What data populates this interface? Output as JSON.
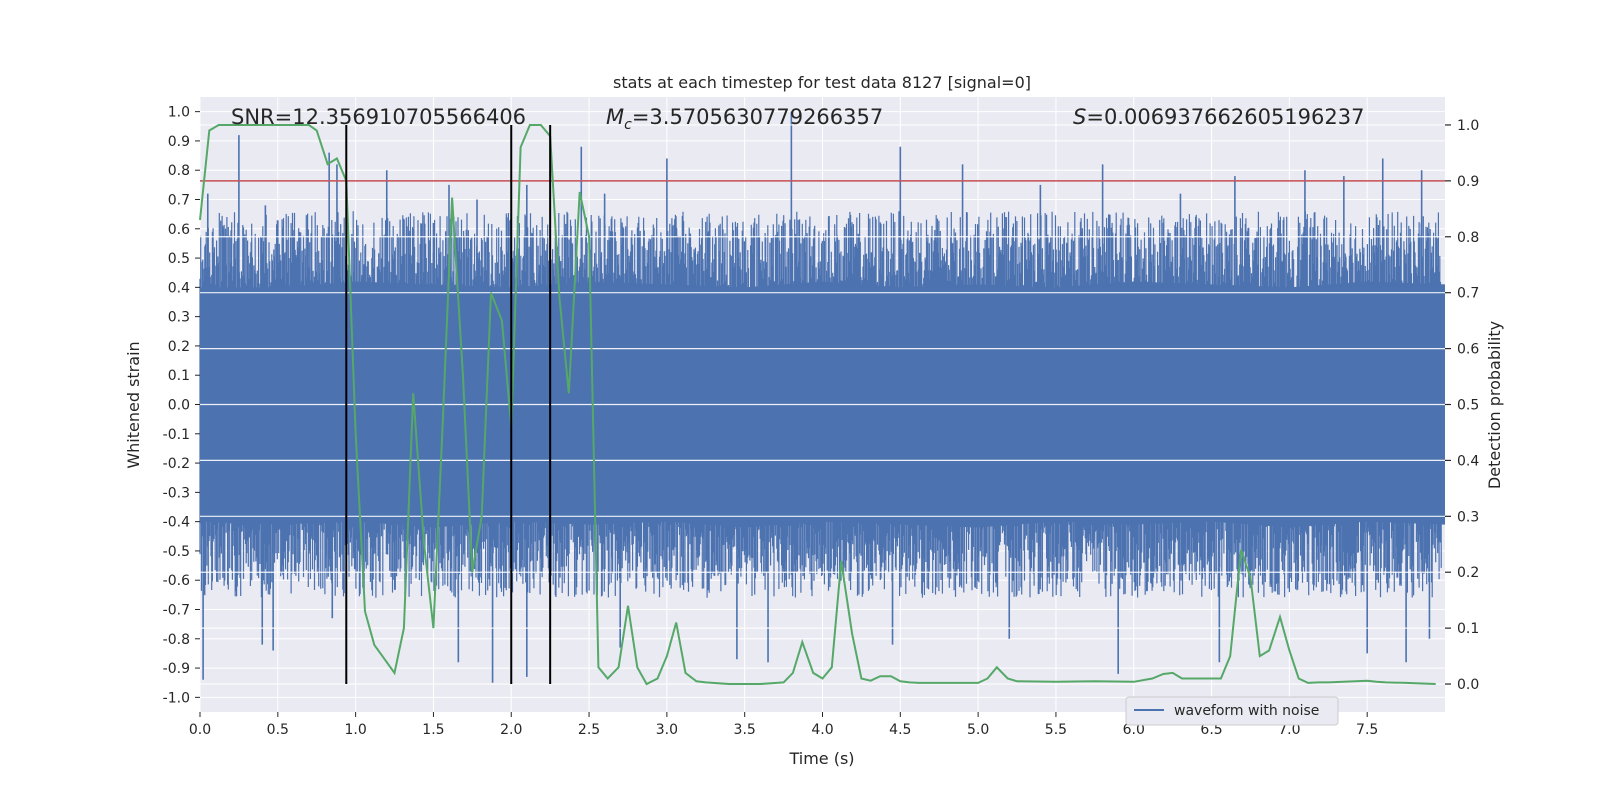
{
  "chart_data": {
    "type": "line",
    "title": "stats at each timestep for test data 8127 [signal=0]",
    "xlabel": "Time (s)",
    "ylabel": "Whitened strain",
    "y2label": "Detection probability",
    "xlim": [
      0.0,
      8.0
    ],
    "ylim": [
      -1.05,
      1.05
    ],
    "y2lim": [
      -0.05,
      1.05
    ],
    "x_ticks": [
      "0.0",
      "0.5",
      "1.0",
      "1.5",
      "2.0",
      "2.5",
      "3.0",
      "3.5",
      "4.0",
      "4.5",
      "5.0",
      "5.5",
      "6.0",
      "6.5",
      "7.0",
      "7.5"
    ],
    "y_ticks": [
      "1.0",
      "0.9",
      "0.8",
      "0.7",
      "0.6",
      "0.5",
      "0.4",
      "0.3",
      "0.2",
      "0.1",
      "0.0",
      "-0.1",
      "-0.2",
      "-0.3",
      "-0.4",
      "-0.5",
      "-0.6",
      "-0.7",
      "-0.8",
      "-0.9",
      "-1.0"
    ],
    "y2_ticks": [
      "1.0",
      "0.9",
      "0.8",
      "0.7",
      "0.6",
      "0.5",
      "0.4",
      "0.3",
      "0.2",
      "0.1",
      "0.0"
    ],
    "annotations": {
      "snr": "SNR=12.356910705566406",
      "mc_symbol": "M",
      "mc_sub": "c",
      "mc_value": "=3.5705630779266357",
      "s_symbol": "S",
      "s_value": "=0.006937662605196237"
    },
    "threshold": {
      "y2": 0.9,
      "color": "#c44e52"
    },
    "vertical_lines": [
      0.94,
      2.0,
      2.25
    ],
    "legend": {
      "label": "waveform with noise",
      "placement": "lower-right"
    },
    "colors": {
      "waveform": "#4c72b0",
      "probability": "#55a868",
      "vlines": "#000000",
      "background": "#eaeaf2",
      "grid": "#ffffff"
    },
    "series": [
      {
        "name": "waveform with noise",
        "band_upper": [
          0.4,
          0.4,
          0.42,
          0.41,
          0.4,
          0.42,
          0.41,
          0.4,
          0.42,
          0.4,
          0.41,
          0.4,
          0.42,
          0.41,
          0.4,
          0.42,
          0.41
        ],
        "band_lower": [
          -0.4,
          -0.41,
          -0.4,
          -0.42,
          -0.4,
          -0.41,
          -0.4,
          -0.42,
          -0.4,
          -0.41,
          -0.42,
          -0.4,
          -0.41,
          -0.4,
          -0.42,
          -0.4,
          -0.41
        ],
        "band_x": [
          0.0,
          0.5,
          1.0,
          1.5,
          2.0,
          2.5,
          3.0,
          3.5,
          4.0,
          4.5,
          5.0,
          5.5,
          6.0,
          6.5,
          7.0,
          7.5,
          8.0
        ],
        "peaks": [
          [
            0.05,
            0.72
          ],
          [
            0.25,
            0.92
          ],
          [
            0.42,
            0.68
          ],
          [
            0.83,
            0.86
          ],
          [
            0.88,
            0.82
          ],
          [
            1.2,
            0.8
          ],
          [
            1.5,
            0.62
          ],
          [
            1.6,
            0.75
          ],
          [
            1.78,
            0.7
          ],
          [
            2.1,
            0.75
          ],
          [
            2.45,
            0.88
          ],
          [
            2.6,
            0.72
          ],
          [
            3.0,
            0.84
          ],
          [
            3.8,
            1.0
          ],
          [
            4.5,
            0.88
          ],
          [
            4.9,
            0.82
          ],
          [
            5.4,
            0.75
          ],
          [
            5.8,
            0.82
          ],
          [
            6.3,
            0.72
          ],
          [
            6.65,
            0.78
          ],
          [
            7.1,
            0.8
          ],
          [
            7.35,
            0.78
          ],
          [
            7.6,
            0.84
          ],
          [
            7.85,
            0.8
          ]
        ],
        "troughs": [
          [
            0.02,
            -0.94
          ],
          [
            0.4,
            -0.82
          ],
          [
            0.47,
            -0.84
          ],
          [
            0.85,
            -0.73
          ],
          [
            1.05,
            -0.58
          ],
          [
            1.66,
            -0.88
          ],
          [
            1.88,
            -0.95
          ],
          [
            2.1,
            -0.93
          ],
          [
            2.7,
            -0.83
          ],
          [
            3.45,
            -0.87
          ],
          [
            3.65,
            -0.88
          ],
          [
            4.45,
            -0.82
          ],
          [
            5.2,
            -0.8
          ],
          [
            5.9,
            -0.92
          ],
          [
            6.55,
            -0.88
          ],
          [
            7.5,
            -0.85
          ],
          [
            7.75,
            -0.88
          ],
          [
            7.9,
            -0.8
          ]
        ]
      },
      {
        "name": "",
        "axis": "y2",
        "x": [
          0.0,
          0.06,
          0.12,
          0.25,
          0.5,
          0.6,
          0.7,
          0.75,
          0.82,
          0.88,
          0.94,
          1.0,
          1.06,
          1.12,
          1.25,
          1.31,
          1.37,
          1.44,
          1.5,
          1.56,
          1.62,
          1.69,
          1.75,
          1.81,
          1.87,
          1.94,
          2.0,
          2.06,
          2.12,
          2.19,
          2.25,
          2.31,
          2.37,
          2.44,
          2.5,
          2.56,
          2.62,
          2.69,
          2.75,
          2.81,
          2.87,
          2.94,
          3.0,
          3.06,
          3.12,
          3.19,
          3.25,
          3.4,
          3.6,
          3.75,
          3.81,
          3.87,
          3.94,
          4.0,
          4.06,
          4.12,
          4.19,
          4.25,
          4.31,
          4.37,
          4.44,
          4.5,
          4.56,
          4.62,
          4.75,
          5.0,
          5.06,
          5.12,
          5.19,
          5.25,
          5.5,
          5.75,
          6.0,
          6.12,
          6.19,
          6.25,
          6.31,
          6.37,
          6.44,
          6.56,
          6.62,
          6.69,
          6.75,
          6.81,
          6.87,
          6.94,
          7.0,
          7.06,
          7.12,
          7.19,
          7.25,
          7.5,
          7.56,
          7.62,
          7.75,
          7.94
        ],
        "y": [
          0.83,
          0.99,
          1.0,
          1.0,
          1.0,
          1.0,
          1.0,
          0.99,
          0.93,
          0.94,
          0.9,
          0.45,
          0.13,
          0.07,
          0.02,
          0.1,
          0.52,
          0.25,
          0.1,
          0.47,
          0.87,
          0.55,
          0.2,
          0.3,
          0.7,
          0.65,
          0.46,
          0.96,
          1.0,
          1.0,
          0.98,
          0.69,
          0.52,
          0.88,
          0.8,
          0.03,
          0.01,
          0.03,
          0.14,
          0.03,
          0.0,
          0.01,
          0.05,
          0.11,
          0.02,
          0.005,
          0.003,
          0.0,
          0.0,
          0.003,
          0.02,
          0.075,
          0.02,
          0.01,
          0.03,
          0.22,
          0.09,
          0.01,
          0.006,
          0.014,
          0.014,
          0.005,
          0.003,
          0.002,
          0.002,
          0.002,
          0.01,
          0.03,
          0.01,
          0.005,
          0.004,
          0.005,
          0.004,
          0.01,
          0.018,
          0.02,
          0.01,
          0.01,
          0.01,
          0.01,
          0.05,
          0.24,
          0.19,
          0.05,
          0.06,
          0.12,
          0.06,
          0.01,
          0.002,
          0.003,
          0.003,
          0.006,
          0.004,
          0.003,
          0.002,
          0.0
        ]
      }
    ]
  }
}
